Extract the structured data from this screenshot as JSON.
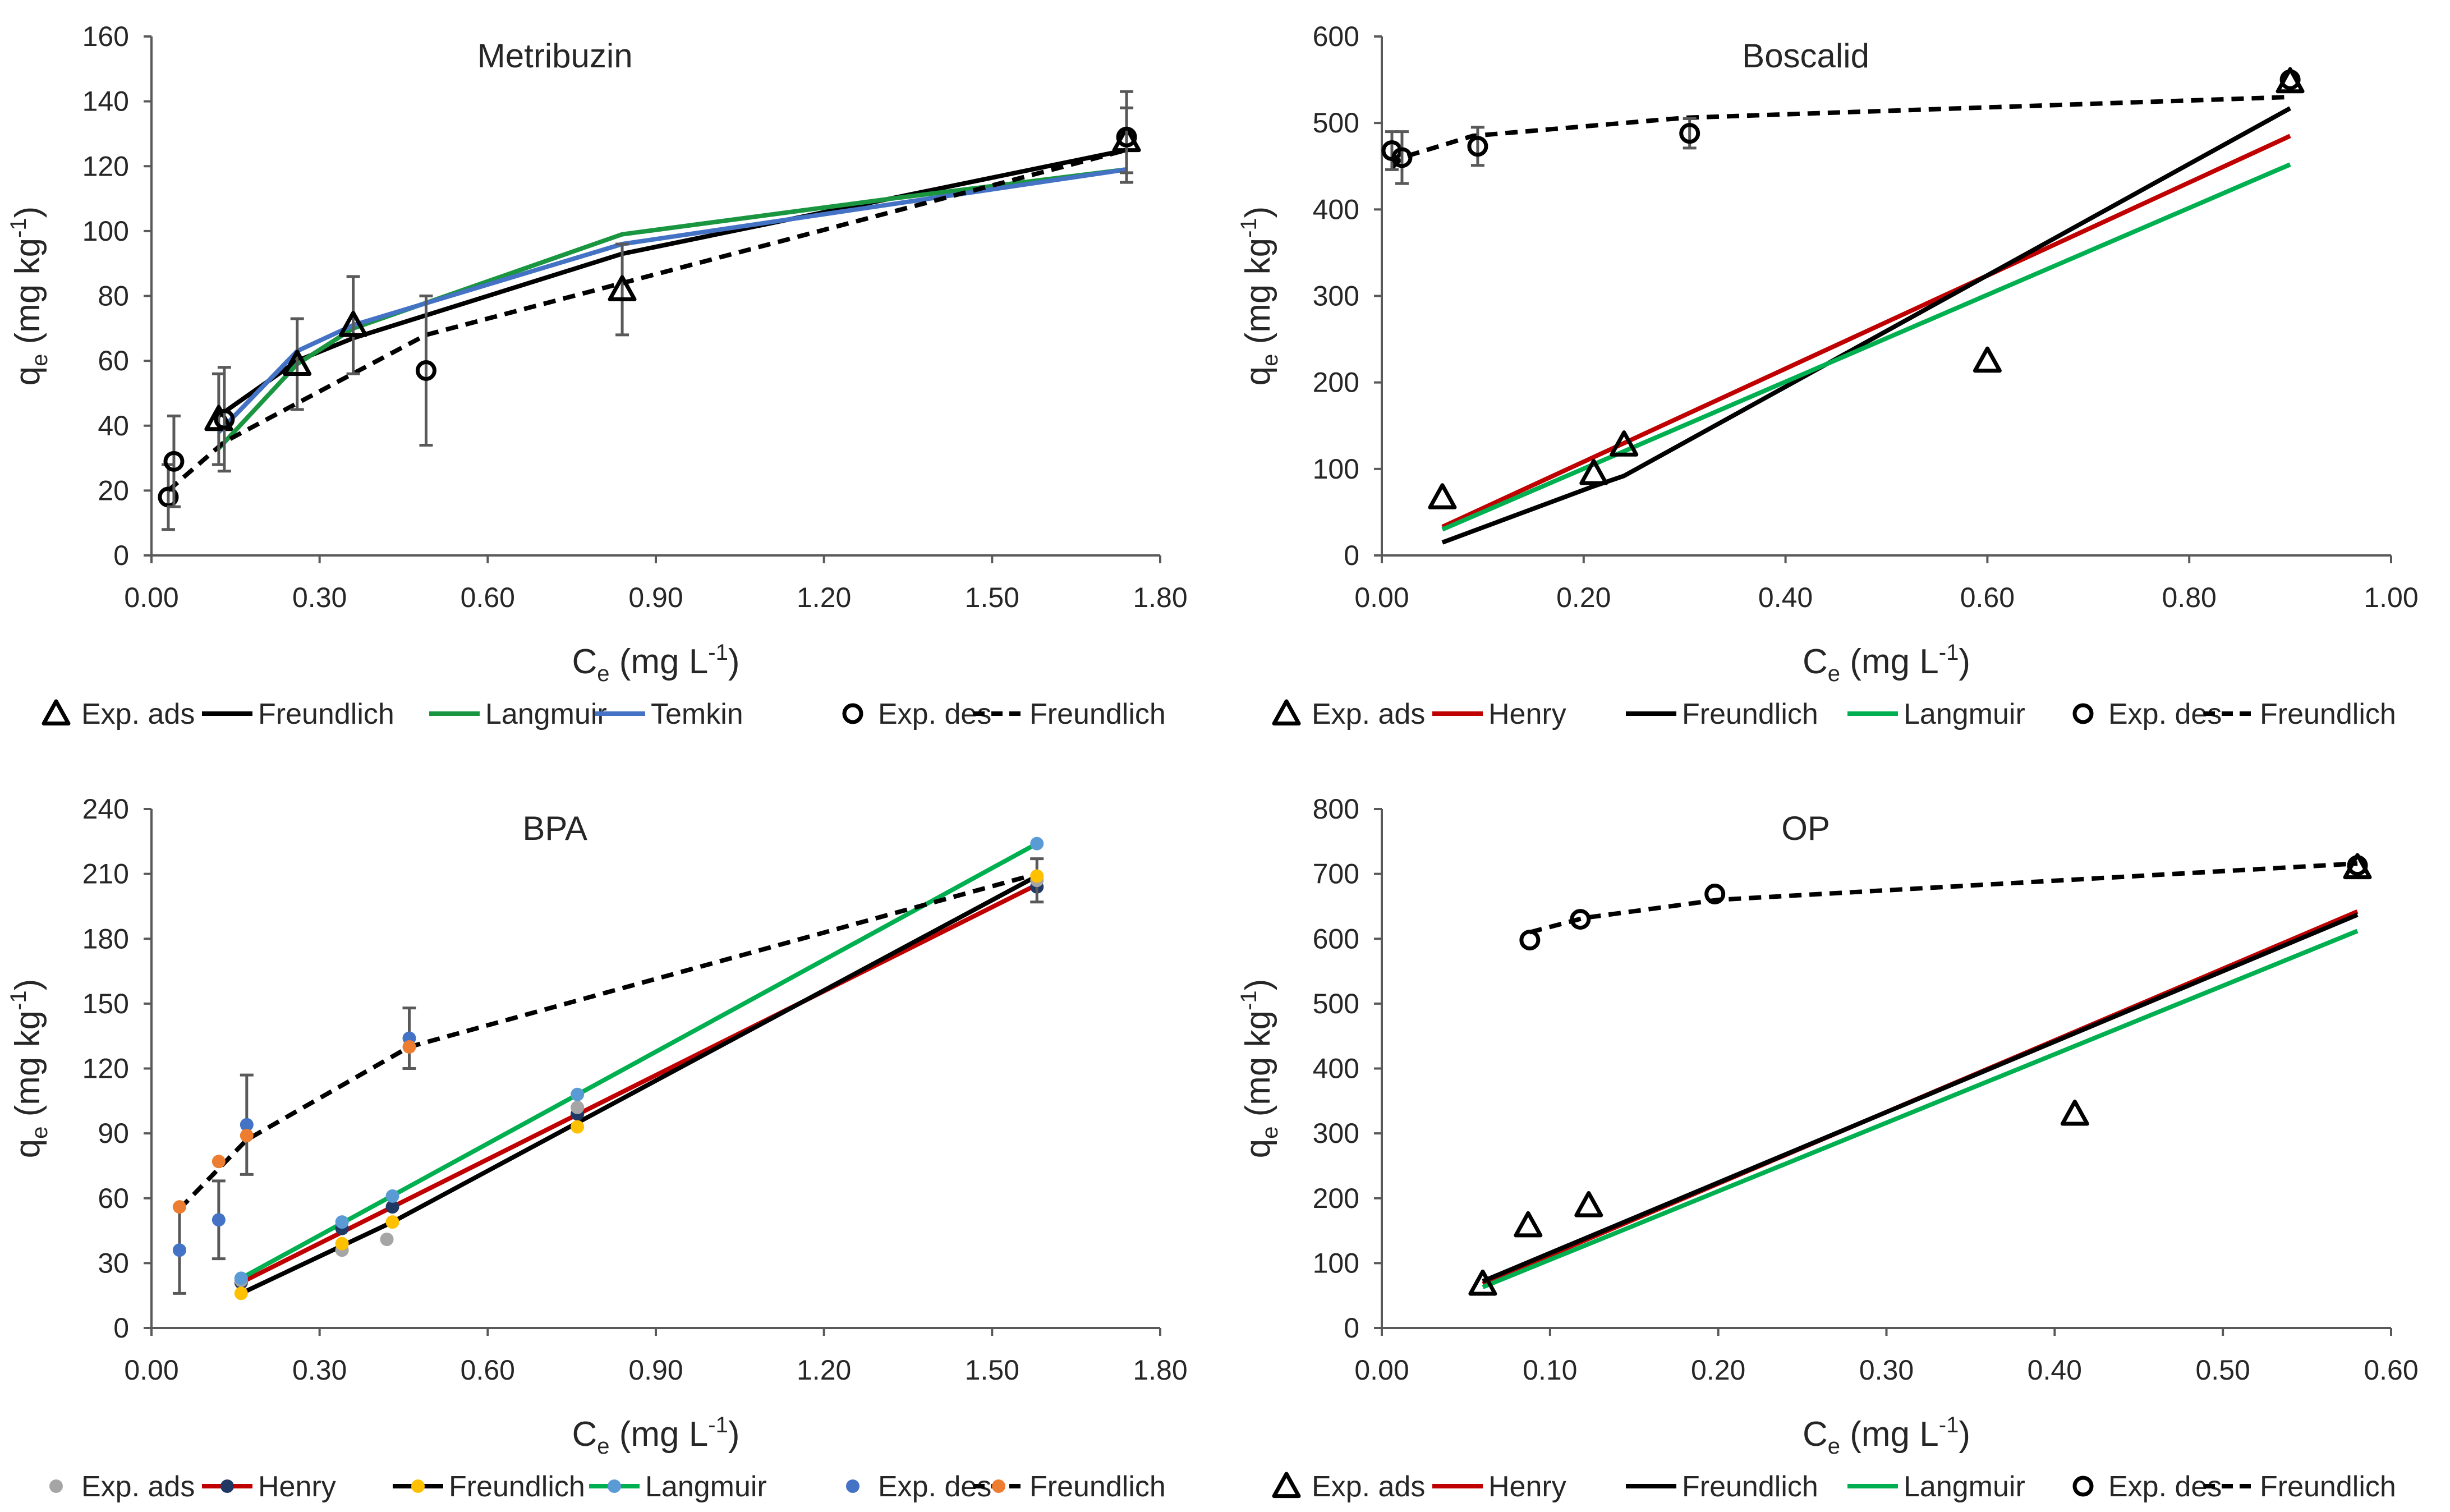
{
  "chart_data": [
    {
      "id": "metribuzin",
      "type": "scatter",
      "title": "Metribuzin",
      "xlabel": "C",
      "xlabel_sub": "e",
      "xlabel_unit": "(mg L",
      "xlabel_sup": "-1",
      "ylabel": "q",
      "ylabel_sub": "e",
      "ylabel_unit": "(mg kg",
      "ylabel_sup": "-1",
      "xlim": [
        0,
        1.8
      ],
      "ylim": [
        0,
        160
      ],
      "xticks": [
        "0.00",
        "0.30",
        "0.60",
        "0.90",
        "1.20",
        "1.50",
        "1.80"
      ],
      "yticks": [
        "0",
        "20",
        "40",
        "60",
        "80",
        "100",
        "120",
        "140",
        "160"
      ],
      "series": [
        {
          "name": "Freundlich",
          "kind": "line",
          "color": "#000000",
          "dash": false,
          "x": [
            0.12,
            0.26,
            0.36,
            0.84,
            1.74
          ],
          "y": [
            43,
            60,
            67,
            93,
            125
          ]
        },
        {
          "name": "Langmuir",
          "kind": "line",
          "color": "#1a9641",
          "dash": false,
          "x": [
            0.12,
            0.26,
            0.36,
            0.84,
            1.32,
            1.74
          ],
          "y": [
            33,
            59,
            70,
            99,
            110,
            119
          ]
        },
        {
          "name": "Temkin",
          "kind": "line",
          "color": "#4472c4",
          "dash": false,
          "x": [
            0.12,
            0.26,
            0.36,
            0.84,
            1.74
          ],
          "y": [
            38,
            63,
            71,
            96,
            119
          ]
        },
        {
          "name": "Freundlich",
          "kind": "line",
          "color": "#000000",
          "dash": true,
          "x": [
            0.03,
            0.13,
            0.49,
            1.74
          ],
          "y": [
            20,
            35,
            68,
            125
          ]
        },
        {
          "name": "Exp. ads",
          "kind": "triangle",
          "color": "#000000",
          "x": [
            0.12,
            0.26,
            0.36,
            0.84,
            1.74
          ],
          "y": [
            42,
            59,
            71,
            82,
            128
          ],
          "err": [
            14,
            14,
            15,
            14,
            10
          ]
        },
        {
          "name": "Exp. des",
          "kind": "circle",
          "color": "#000000",
          "x": [
            0.03,
            0.04,
            0.13,
            0.49,
            1.74
          ],
          "y": [
            18,
            29,
            42,
            57,
            129
          ],
          "err": [
            10,
            14,
            16,
            23,
            14
          ]
        }
      ],
      "legend": [
        {
          "label": "Exp. ads",
          "marker": "triangle",
          "color": "#000000"
        },
        {
          "label": "Freundlich",
          "marker": "line",
          "color": "#000000"
        },
        {
          "label": "Langmuir",
          "marker": "line",
          "color": "#1a9641"
        },
        {
          "label": "Temkin",
          "marker": "line",
          "color": "#4472c4"
        },
        {
          "label": "Exp. des",
          "marker": "circle",
          "color": "#000000"
        },
        {
          "label": "Freundlich",
          "marker": "dash",
          "color": "#000000"
        }
      ]
    },
    {
      "id": "boscalid",
      "type": "scatter",
      "title": "Boscalid",
      "xlabel": "C",
      "xlabel_sub": "e",
      "xlabel_unit": "(mg L",
      "xlabel_sup": "-1",
      "ylabel": "q",
      "ylabel_sub": "e",
      "ylabel_unit": "(mg kg",
      "ylabel_sup": "-1",
      "xlim": [
        0,
        1.0
      ],
      "ylim": [
        0,
        600
      ],
      "xticks": [
        "0.00",
        "0.20",
        "0.40",
        "0.60",
        "0.80",
        "1.00"
      ],
      "yticks": [
        "0",
        "100",
        "200",
        "300",
        "400",
        "500",
        "600"
      ],
      "series": [
        {
          "name": "Henry",
          "kind": "line",
          "color": "#c00000",
          "dash": false,
          "x": [
            0.06,
            0.9
          ],
          "y": [
            33,
            485
          ]
        },
        {
          "name": "Freundlich",
          "kind": "line",
          "color": "#000000",
          "dash": false,
          "x": [
            0.06,
            0.21,
            0.24,
            0.9
          ],
          "y": [
            15,
            80,
            92,
            517
          ]
        },
        {
          "name": "Langmuir",
          "kind": "line",
          "color": "#00b050",
          "dash": false,
          "x": [
            0.06,
            0.9
          ],
          "y": [
            30,
            452
          ]
        },
        {
          "name": "Freundlich",
          "kind": "line",
          "color": "#000000",
          "dash": true,
          "x": [
            0.01,
            0.02,
            0.09,
            0.3,
            0.9
          ],
          "y": [
            448,
            460,
            485,
            506,
            530
          ]
        },
        {
          "name": "Exp. ads",
          "kind": "triangle",
          "color": "#000000",
          "x": [
            0.06,
            0.21,
            0.24,
            0.6,
            0.9
          ],
          "y": [
            67,
            95,
            128,
            225,
            548
          ],
          "err": [
            0,
            0,
            0,
            0,
            0
          ]
        },
        {
          "name": "Exp. des",
          "kind": "circle",
          "color": "#000000",
          "x": [
            0.01,
            0.02,
            0.095,
            0.305,
            0.9
          ],
          "y": [
            468,
            460,
            473,
            488,
            550
          ],
          "err": [
            22,
            30,
            22,
            17,
            0
          ]
        }
      ],
      "legend": [
        {
          "label": "Exp. ads",
          "marker": "triangle",
          "color": "#000000"
        },
        {
          "label": "Henry",
          "marker": "line",
          "color": "#c00000"
        },
        {
          "label": "Freundlich",
          "marker": "line",
          "color": "#000000"
        },
        {
          "label": "Langmuir",
          "marker": "line",
          "color": "#00b050"
        },
        {
          "label": "Exp. des",
          "marker": "circle",
          "color": "#000000"
        },
        {
          "label": "Freundlich",
          "marker": "dash",
          "color": "#000000"
        }
      ]
    },
    {
      "id": "bpa",
      "type": "scatter",
      "title": "BPA",
      "xlabel": "C",
      "xlabel_sub": "e",
      "xlabel_unit": "(mg L",
      "xlabel_sup": "-1",
      "ylabel": "q",
      "ylabel_sub": "e",
      "ylabel_unit": "(mg kg",
      "ylabel_sup": "-1",
      "xlim": [
        0,
        1.8
      ],
      "ylim": [
        0,
        240
      ],
      "xticks": [
        "0.00",
        "0.30",
        "0.60",
        "0.90",
        "1.20",
        "1.50",
        "1.80"
      ],
      "yticks": [
        "0",
        "30",
        "60",
        "90",
        "120",
        "150",
        "180",
        "210",
        "240"
      ],
      "series": [
        {
          "name": "Henry",
          "kind": "line",
          "color": "#c00000",
          "dash": false,
          "x": [
            0.16,
            1.58
          ],
          "y": [
            21,
            205
          ]
        },
        {
          "name": "Freundlich",
          "kind": "line",
          "color": "#000000",
          "dash": false,
          "x": [
            0.16,
            0.43,
            1.58
          ],
          "y": [
            16,
            49,
            209
          ]
        },
        {
          "name": "Langmuir",
          "kind": "line",
          "color": "#00b050",
          "dash": false,
          "x": [
            0.16,
            1.58
          ],
          "y": [
            23,
            224
          ]
        },
        {
          "name": "Freundlich",
          "kind": "line",
          "color": "#000000",
          "dash": true,
          "x": [
            0.05,
            0.17,
            0.46,
            1.58
          ],
          "y": [
            55,
            87,
            130,
            210
          ]
        },
        {
          "name": "Henry",
          "kind": "dot",
          "color": "#203864",
          "x": [
            0.16,
            0.34,
            0.43,
            0.76,
            1.58
          ],
          "y": [
            21,
            46,
            56,
            99,
            204
          ],
          "err": [
            0,
            0,
            0,
            0,
            0
          ]
        },
        {
          "name": "Exp. ads",
          "kind": "dot",
          "color": "#a5a5a5",
          "x": [
            0.16,
            0.34,
            0.42,
            0.76,
            1.58
          ],
          "y": [
            22,
            36,
            41,
            102,
            207
          ],
          "err": [
            0,
            0,
            0,
            0,
            10
          ]
        },
        {
          "name": "Freundlich",
          "kind": "dot",
          "color": "#ffc000",
          "x": [
            0.16,
            0.34,
            0.43,
            0.76,
            1.58
          ],
          "y": [
            16,
            39,
            49,
            93,
            209
          ],
          "err": [
            0,
            0,
            0,
            0,
            0
          ]
        },
        {
          "name": "Langmuir",
          "kind": "dot",
          "color": "#5b9bd5",
          "x": [
            0.16,
            0.34,
            0.43,
            0.76,
            1.58
          ],
          "y": [
            23,
            49,
            61,
            108,
            224
          ],
          "err": [
            0,
            0,
            0,
            0,
            0
          ]
        },
        {
          "name": "Exp. des",
          "kind": "dot",
          "color": "#4472c4",
          "x": [
            0.05,
            0.12,
            0.17,
            0.46
          ],
          "y": [
            36,
            50,
            94,
            134
          ],
          "err": [
            20,
            18,
            23,
            14
          ]
        },
        {
          "name": "Freundlich",
          "kind": "dot",
          "color": "#ed7d31",
          "x": [
            0.05,
            0.12,
            0.17,
            0.46
          ],
          "y": [
            56,
            77,
            89,
            130
          ],
          "err": [
            0,
            0,
            0,
            0
          ]
        }
      ],
      "legend": [
        {
          "label": "Exp. ads",
          "marker": "dot",
          "color": "#a5a5a5"
        },
        {
          "label": "Henry",
          "marker": "line-dot",
          "color": "#c00000",
          "dot_color": "#203864"
        },
        {
          "label": "Freundlich",
          "marker": "line-dot",
          "color": "#000000",
          "dot_color": "#ffc000"
        },
        {
          "label": "Langmuir",
          "marker": "line-dot",
          "color": "#00b050",
          "dot_color": "#5b9bd5"
        },
        {
          "label": "Exp. des",
          "marker": "dot",
          "color": "#4472c4"
        },
        {
          "label": "Freundlich",
          "marker": "dash-dot",
          "color": "#000000",
          "dot_color": "#ed7d31"
        }
      ]
    },
    {
      "id": "op",
      "type": "scatter",
      "title": "OP",
      "xlabel": "C",
      "xlabel_sub": "e",
      "xlabel_unit": "(mg L",
      "xlabel_sup": "-1",
      "ylabel": "q",
      "ylabel_sub": "e",
      "ylabel_unit": "(mg kg",
      "ylabel_sup": "-1",
      "xlim": [
        0,
        0.6
      ],
      "ylim": [
        0,
        800
      ],
      "xticks": [
        "0.00",
        "0.10",
        "0.20",
        "0.30",
        "0.40",
        "0.50",
        "0.60"
      ],
      "yticks": [
        "0",
        "100",
        "200",
        "300",
        "400",
        "500",
        "600",
        "700",
        "800"
      ],
      "series": [
        {
          "name": "Henry",
          "kind": "line",
          "color": "#c00000",
          "dash": false,
          "x": [
            0.06,
            0.58
          ],
          "y": [
            68,
            642
          ]
        },
        {
          "name": "Freundlich",
          "kind": "line",
          "color": "#000000",
          "dash": false,
          "x": [
            0.06,
            0.58
          ],
          "y": [
            72,
            637
          ]
        },
        {
          "name": "Langmuir",
          "kind": "line",
          "color": "#00b050",
          "dash": false,
          "x": [
            0.06,
            0.58
          ],
          "y": [
            63,
            612
          ]
        },
        {
          "name": "Freundlich",
          "kind": "line",
          "color": "#000000",
          "dash": true,
          "x": [
            0.088,
            0.12,
            0.2,
            0.58
          ],
          "y": [
            610,
            632,
            660,
            716
          ]
        },
        {
          "name": "Exp. ads",
          "kind": "triangle",
          "color": "#000000",
          "x": [
            0.06,
            0.087,
            0.123,
            0.412,
            0.58
          ],
          "y": [
            68,
            158,
            189,
            330,
            710
          ],
          "err": [
            0,
            0,
            0,
            0,
            0
          ]
        },
        {
          "name": "Exp. des",
          "kind": "circle",
          "color": "#000000",
          "x": [
            0.088,
            0.118,
            0.198,
            0.58
          ],
          "y": [
            598,
            630,
            669,
            713
          ],
          "err": [
            0,
            0,
            0,
            0
          ]
        }
      ],
      "legend": [
        {
          "label": "Exp. ads",
          "marker": "triangle",
          "color": "#000000"
        },
        {
          "label": "Henry",
          "marker": "line",
          "color": "#c00000"
        },
        {
          "label": "Freundlich",
          "marker": "line",
          "color": "#000000"
        },
        {
          "label": "Langmuir",
          "marker": "line",
          "color": "#00b050"
        },
        {
          "label": "Exp. des",
          "marker": "circle",
          "color": "#000000"
        },
        {
          "label": "Freundlich",
          "marker": "dash",
          "color": "#000000"
        }
      ]
    }
  ]
}
